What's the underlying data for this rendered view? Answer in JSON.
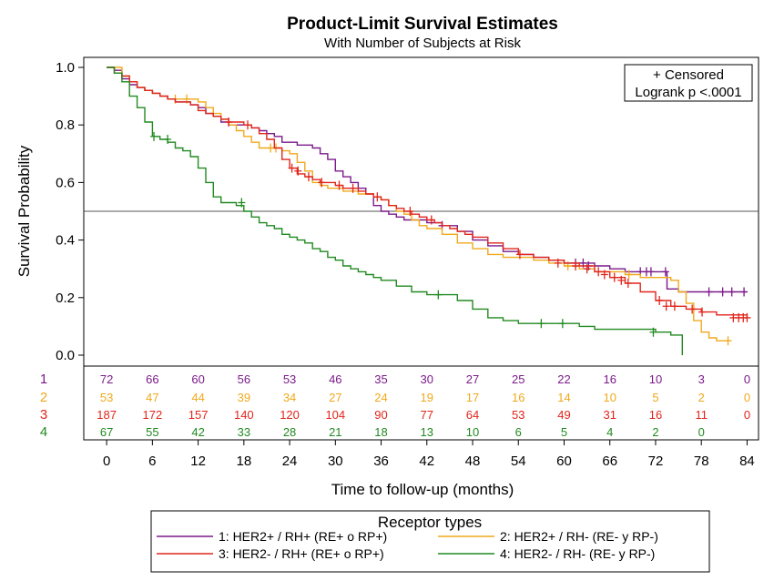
{
  "chart_data": {
    "type": "line",
    "title": "Product-Limit Survival Estimates",
    "subtitle": "With Number of Subjects at Risk",
    "xlabel": "Time to follow-up (months)",
    "ylabel": "Survival Probability",
    "xlim": [
      -3,
      85.5
    ],
    "ylim": [
      0,
      1.0
    ],
    "xticks": [
      0,
      6,
      12,
      18,
      24,
      30,
      36,
      42,
      48,
      54,
      60,
      66,
      72,
      78,
      84
    ],
    "yticks": [
      0.0,
      0.2,
      0.4,
      0.6,
      0.8,
      1.0
    ],
    "ytick_labels": [
      "0.0",
      "0.2",
      "0.4",
      "0.6",
      "0.8",
      "1.0"
    ],
    "reference_line_y": 0.5,
    "inset": [
      "+ Censored",
      "Logrank p <.0001"
    ],
    "legend_title": "Receptor types",
    "at_risk_times": [
      0,
      6,
      12,
      18,
      24,
      30,
      36,
      42,
      48,
      54,
      60,
      66,
      72,
      78,
      84
    ],
    "series": [
      {
        "id": "1",
        "name": "1: HER2+ / RH+ (RE+ o RP+)",
        "color": "#7b1a8a",
        "x": [
          0,
          1,
          2,
          3,
          4,
          5,
          6,
          7,
          8,
          9,
          10,
          11,
          12,
          13,
          14,
          15,
          16,
          17,
          18,
          19,
          20,
          21,
          22,
          23,
          24,
          25,
          26,
          27,
          28,
          29,
          30,
          31,
          32,
          33,
          34,
          35,
          36,
          37,
          38,
          39,
          40,
          42,
          44,
          46,
          48,
          50,
          52,
          54,
          56,
          58,
          60,
          62,
          64,
          66,
          68,
          70,
          72,
          73.5,
          75,
          84
        ],
        "y": [
          1.0,
          0.99,
          0.96,
          0.94,
          0.93,
          0.92,
          0.91,
          0.9,
          0.89,
          0.88,
          0.88,
          0.87,
          0.86,
          0.84,
          0.83,
          0.81,
          0.8,
          0.8,
          0.8,
          0.79,
          0.78,
          0.77,
          0.76,
          0.74,
          0.74,
          0.73,
          0.73,
          0.72,
          0.7,
          0.68,
          0.64,
          0.62,
          0.6,
          0.58,
          0.56,
          0.52,
          0.5,
          0.49,
          0.48,
          0.47,
          0.47,
          0.46,
          0.45,
          0.43,
          0.4,
          0.38,
          0.36,
          0.35,
          0.34,
          0.33,
          0.32,
          0.32,
          0.31,
          0.3,
          0.29,
          0.29,
          0.29,
          0.23,
          0.22,
          0.22
        ],
        "censored": [
          [
            44,
            0.45
          ],
          [
            61.5,
            0.32
          ],
          [
            62.5,
            0.32
          ],
          [
            63.2,
            0.31
          ],
          [
            70,
            0.29
          ],
          [
            70.8,
            0.29
          ],
          [
            71.4,
            0.29
          ],
          [
            73.3,
            0.29
          ],
          [
            79,
            0.22
          ],
          [
            80.8,
            0.22
          ],
          [
            82,
            0.22
          ],
          [
            83.6,
            0.22
          ]
        ],
        "at_risk": [
          "72",
          "66",
          "60",
          "56",
          "53",
          "46",
          "35",
          "30",
          "27",
          "25",
          "22",
          "16",
          "10",
          "3",
          "0"
        ]
      },
      {
        "id": "2",
        "name": "2: HER2+ / RH- (RE- y RP-)",
        "color": "#f0a91c",
        "x": [
          0,
          1,
          2,
          3,
          4,
          5,
          6,
          7,
          8,
          9,
          10,
          11,
          12,
          13,
          14,
          15,
          16,
          17,
          18,
          19,
          20,
          21,
          22,
          23,
          24,
          25,
          26,
          27,
          28,
          29,
          30,
          31,
          32,
          33,
          34,
          35,
          36,
          37,
          38,
          39,
          40,
          41,
          42,
          44,
          46,
          48,
          50,
          52,
          54,
          56,
          58,
          60,
          62,
          64,
          66,
          68,
          70,
          72,
          74,
          75,
          76,
          77,
          78,
          79,
          80,
          81.5
        ],
        "y": [
          1.0,
          1.0,
          0.97,
          0.95,
          0.93,
          0.92,
          0.91,
          0.9,
          0.89,
          0.89,
          0.89,
          0.89,
          0.88,
          0.86,
          0.84,
          0.82,
          0.8,
          0.78,
          0.76,
          0.74,
          0.72,
          0.72,
          0.72,
          0.71,
          0.7,
          0.67,
          0.64,
          0.6,
          0.59,
          0.58,
          0.58,
          0.57,
          0.57,
          0.56,
          0.56,
          0.55,
          0.54,
          0.52,
          0.5,
          0.49,
          0.47,
          0.45,
          0.44,
          0.42,
          0.39,
          0.37,
          0.35,
          0.34,
          0.34,
          0.33,
          0.32,
          0.31,
          0.3,
          0.29,
          0.29,
          0.28,
          0.27,
          0.27,
          0.26,
          0.22,
          0.18,
          0.12,
          0.08,
          0.06,
          0.05,
          0.05
        ],
        "censored": [
          [
            9,
            0.89
          ],
          [
            10.5,
            0.89
          ],
          [
            21.5,
            0.72
          ],
          [
            22.2,
            0.72
          ],
          [
            60.5,
            0.31
          ],
          [
            68.5,
            0.28
          ],
          [
            81.5,
            0.05
          ]
        ],
        "at_risk": [
          "53",
          "47",
          "44",
          "39",
          "34",
          "27",
          "24",
          "19",
          "17",
          "16",
          "14",
          "10",
          "5",
          "2",
          "0"
        ]
      },
      {
        "id": "3",
        "name": "3: HER2- / RH+ (RE+ o RP+)",
        "color": "#e0261c",
        "x": [
          0,
          1,
          2,
          3,
          4,
          5,
          6,
          7,
          8,
          9,
          10,
          11,
          12,
          13,
          14,
          15,
          16,
          17,
          18,
          19,
          20,
          21,
          22,
          23,
          24,
          25,
          26,
          27,
          28,
          29,
          30,
          31,
          32,
          33,
          34,
          35,
          36,
          37,
          38,
          39,
          40,
          41,
          42,
          43,
          44,
          45,
          46,
          47,
          48,
          50,
          52,
          54,
          56,
          58,
          60,
          62,
          64,
          66,
          68,
          70,
          72,
          74,
          76,
          78,
          80,
          84
        ],
        "y": [
          1.0,
          0.98,
          0.97,
          0.95,
          0.93,
          0.92,
          0.91,
          0.9,
          0.89,
          0.88,
          0.88,
          0.87,
          0.85,
          0.84,
          0.83,
          0.82,
          0.81,
          0.81,
          0.8,
          0.79,
          0.77,
          0.75,
          0.72,
          0.68,
          0.65,
          0.63,
          0.62,
          0.61,
          0.6,
          0.6,
          0.59,
          0.58,
          0.58,
          0.57,
          0.56,
          0.55,
          0.54,
          0.52,
          0.51,
          0.5,
          0.49,
          0.48,
          0.47,
          0.46,
          0.45,
          0.44,
          0.43,
          0.42,
          0.41,
          0.39,
          0.37,
          0.35,
          0.34,
          0.33,
          0.32,
          0.31,
          0.29,
          0.27,
          0.25,
          0.22,
          0.19,
          0.17,
          0.16,
          0.15,
          0.14,
          0.13
        ],
        "censored": [
          [
            16,
            0.81
          ],
          [
            18.5,
            0.8
          ],
          [
            24.3,
            0.65
          ],
          [
            25.1,
            0.64
          ],
          [
            26.5,
            0.62
          ],
          [
            28.2,
            0.6
          ],
          [
            30.5,
            0.59
          ],
          [
            32.3,
            0.58
          ],
          [
            35.5,
            0.55
          ],
          [
            39.8,
            0.5
          ],
          [
            42.6,
            0.47
          ],
          [
            54.2,
            0.35
          ],
          [
            59.2,
            0.32
          ],
          [
            61.5,
            0.31
          ],
          [
            63,
            0.3
          ],
          [
            64.5,
            0.29
          ],
          [
            65.3,
            0.28
          ],
          [
            66.6,
            0.27
          ],
          [
            67.5,
            0.26
          ],
          [
            68.4,
            0.25
          ],
          [
            72.5,
            0.19
          ],
          [
            73.4,
            0.17
          ],
          [
            74.5,
            0.17
          ],
          [
            76.8,
            0.16
          ],
          [
            78.1,
            0.15
          ],
          [
            82.2,
            0.13
          ],
          [
            82.9,
            0.13
          ],
          [
            83.5,
            0.13
          ],
          [
            84,
            0.13
          ]
        ],
        "at_risk": [
          "187",
          "172",
          "157",
          "140",
          "120",
          "104",
          "90",
          "77",
          "64",
          "53",
          "49",
          "31",
          "16",
          "11",
          "0"
        ]
      },
      {
        "id": "4",
        "name": "4: HER2- / RH- (RE- y RP-)",
        "color": "#218a21",
        "x": [
          0,
          1,
          2,
          3,
          4,
          5,
          6,
          7,
          8,
          9,
          10,
          11,
          12,
          13,
          14,
          15,
          16,
          17,
          18,
          19,
          20,
          21,
          22,
          23,
          24,
          25,
          26,
          27,
          28,
          29,
          30,
          31,
          32,
          33,
          34,
          35,
          36,
          38,
          40,
          42,
          44,
          46,
          48,
          50,
          52,
          54,
          56,
          58,
          60,
          62,
          64,
          66,
          68,
          70,
          72,
          74,
          75.5
        ],
        "y": [
          1.0,
          0.98,
          0.95,
          0.9,
          0.86,
          0.81,
          0.76,
          0.75,
          0.74,
          0.72,
          0.71,
          0.69,
          0.65,
          0.6,
          0.55,
          0.53,
          0.53,
          0.52,
          0.5,
          0.48,
          0.46,
          0.45,
          0.44,
          0.42,
          0.41,
          0.4,
          0.39,
          0.37,
          0.36,
          0.34,
          0.33,
          0.31,
          0.3,
          0.29,
          0.28,
          0.27,
          0.26,
          0.24,
          0.22,
          0.21,
          0.21,
          0.19,
          0.16,
          0.13,
          0.12,
          0.11,
          0.11,
          0.11,
          0.11,
          0.1,
          0.09,
          0.09,
          0.09,
          0.09,
          0.08,
          0.07,
          0.0
        ],
        "censored": [
          [
            6.2,
            0.76
          ],
          [
            8,
            0.75
          ],
          [
            17.7,
            0.53
          ],
          [
            43.5,
            0.21
          ],
          [
            57,
            0.11
          ],
          [
            59.8,
            0.11
          ],
          [
            71.7,
            0.08
          ]
        ],
        "at_risk": [
          "67",
          "55",
          "42",
          "33",
          "28",
          "21",
          "18",
          "13",
          "10",
          "6",
          "5",
          "4",
          "2",
          "0",
          ""
        ]
      }
    ]
  }
}
